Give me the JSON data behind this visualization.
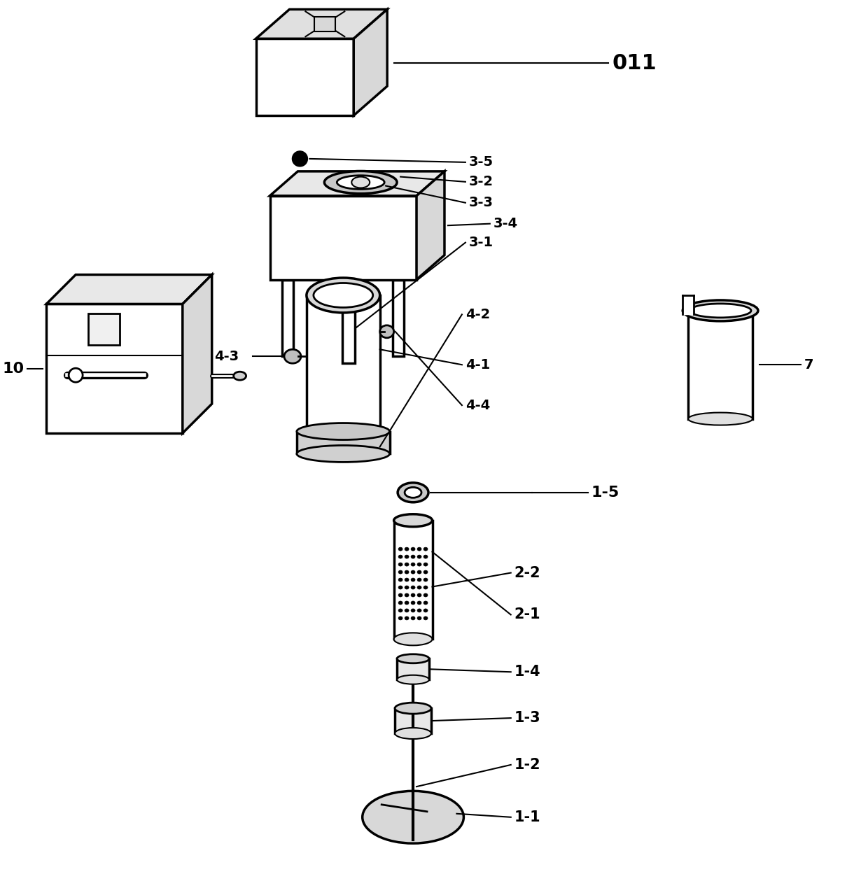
{
  "background_color": "#ffffff",
  "line_color": "#000000",
  "line_width": 2.0,
  "label_fontsize": 13,
  "label_fontweight": "bold",
  "fig_w": 12.4,
  "fig_h": 12.49,
  "dpi": 100
}
